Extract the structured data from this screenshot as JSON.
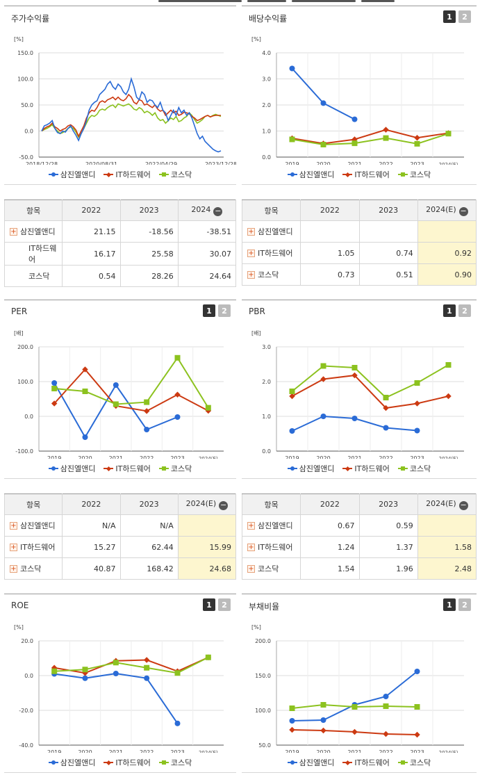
{
  "colors": {
    "s1": "#2a6bd6",
    "s2": "#cc3a12",
    "s3": "#8cc21f",
    "grid": "#dddddd",
    "axis": "#555555"
  },
  "legend": [
    "삼진엘앤디",
    "IT하드웨어",
    "코스닥"
  ],
  "tabs": [
    "1",
    "2"
  ],
  "chart_data": [
    {
      "id": "stock",
      "type": "line",
      "title": "주가수익률",
      "ylabel": "[%]",
      "ylim": [
        -50,
        150
      ],
      "yticks": [
        "150.0",
        "100.0",
        "50.0",
        "0.0",
        "-50.0"
      ],
      "x_labels": [
        "2018/12/28",
        "2020/08/31",
        "2022/04/29",
        "2023/12/28"
      ],
      "series": [
        {
          "name": "삼진엘앤디",
          "values": [
            0,
            10,
            12,
            15,
            20,
            5,
            -3,
            -5,
            0,
            -2,
            5,
            10,
            0,
            -8,
            -18,
            -5,
            5,
            20,
            40,
            50,
            55,
            58,
            70,
            75,
            80,
            90,
            95,
            85,
            80,
            90,
            85,
            75,
            70,
            80,
            100,
            85,
            65,
            60,
            75,
            70,
            55,
            60,
            58,
            50,
            45,
            55,
            40,
            35,
            20,
            30,
            40,
            30,
            45,
            35,
            40,
            30,
            35,
            25,
            10,
            -5,
            -15,
            -10,
            -20,
            -25,
            -30,
            -35,
            -38,
            -40,
            -38
          ]
        },
        {
          "name": "IT하드웨어",
          "values": [
            0,
            5,
            8,
            10,
            15,
            8,
            5,
            0,
            3,
            5,
            10,
            12,
            8,
            2,
            -10,
            0,
            10,
            25,
            35,
            40,
            38,
            45,
            55,
            58,
            55,
            60,
            62,
            65,
            60,
            65,
            60,
            58,
            62,
            70,
            65,
            55,
            52,
            60,
            58,
            50,
            52,
            48,
            45,
            50,
            42,
            38,
            40,
            30,
            35,
            40,
            35,
            38,
            30,
            32,
            36,
            35,
            33,
            28,
            25,
            20,
            22,
            25,
            28,
            30,
            27,
            29,
            30,
            30,
            30
          ]
        },
        {
          "name": "코스닥",
          "values": [
            0,
            3,
            5,
            8,
            12,
            5,
            0,
            -5,
            -3,
            0,
            5,
            8,
            5,
            -2,
            -12,
            -5,
            5,
            15,
            25,
            30,
            28,
            32,
            40,
            42,
            40,
            45,
            48,
            50,
            45,
            52,
            50,
            48,
            50,
            52,
            48,
            42,
            40,
            45,
            42,
            35,
            38,
            35,
            30,
            35,
            25,
            20,
            22,
            15,
            20,
            25,
            22,
            28,
            18,
            20,
            25,
            28,
            35,
            30,
            22,
            15,
            18,
            22,
            28,
            30,
            27,
            30,
            32,
            30,
            28
          ]
        }
      ]
    },
    {
      "id": "div",
      "type": "line",
      "title": "배당수익률",
      "ylabel": "[%]",
      "ylim": [
        0,
        4
      ],
      "yticks": [
        "4.0",
        "3.0",
        "2.0",
        "1.0",
        "0.0"
      ],
      "categories": [
        "2019",
        "2020",
        "2021",
        "2022",
        "2023",
        "2024(E)"
      ],
      "series": [
        {
          "name": "삼진엘앤디",
          "values": [
            3.4,
            2.07,
            1.45,
            null,
            null,
            null
          ]
        },
        {
          "name": "IT하드웨어",
          "values": [
            0.72,
            0.52,
            0.68,
            1.05,
            0.74,
            0.92
          ]
        },
        {
          "name": "코스닥",
          "values": [
            0.68,
            0.48,
            0.53,
            0.73,
            0.51,
            0.9
          ]
        }
      ]
    },
    {
      "id": "per",
      "type": "line",
      "title": "PER",
      "ylabel": "[배]",
      "ylim": [
        -100,
        200
      ],
      "yticks": [
        "200.0",
        "100.0",
        "0.0",
        "-100.0"
      ],
      "categories": [
        "2019",
        "2020",
        "2021",
        "2022",
        "2023",
        "2024(E)"
      ],
      "series": [
        {
          "name": "삼진엘앤디",
          "values": [
            96,
            -60,
            90,
            -38,
            -2,
            null
          ]
        },
        {
          "name": "IT하드웨어",
          "values": [
            37,
            135,
            30,
            15.27,
            62.44,
            15.99
          ]
        },
        {
          "name": "코스닥",
          "values": [
            80,
            72,
            35,
            40.87,
            168.42,
            24.68
          ]
        }
      ]
    },
    {
      "id": "pbr",
      "type": "line",
      "title": "PBR",
      "ylabel": "[배]",
      "ylim": [
        0,
        3
      ],
      "yticks": [
        "3.0",
        "2.0",
        "1.0",
        "0.0"
      ],
      "categories": [
        "2019",
        "2020",
        "2021",
        "2022",
        "2023",
        "2024(E)"
      ],
      "series": [
        {
          "name": "삼진엘앤디",
          "values": [
            0.58,
            1.0,
            0.94,
            0.67,
            0.59,
            null
          ]
        },
        {
          "name": "IT하드웨어",
          "values": [
            1.58,
            2.07,
            2.18,
            1.24,
            1.37,
            1.58
          ]
        },
        {
          "name": "코스닥",
          "values": [
            1.72,
            2.45,
            2.4,
            1.54,
            1.96,
            2.48
          ]
        }
      ]
    },
    {
      "id": "roe",
      "type": "line",
      "title": "ROE",
      "ylabel": "[%]",
      "ylim": [
        -40,
        20
      ],
      "yticks": [
        "20.0",
        "0.0",
        "-20.0",
        "-40.0"
      ],
      "categories": [
        "2019",
        "2020",
        "2021",
        "2022",
        "2023",
        "2024(E)"
      ],
      "series": [
        {
          "name": "삼진엘앤디",
          "values": [
            1,
            -1.5,
            1.2,
            -1.5,
            -27.5,
            null
          ]
        },
        {
          "name": "IT하드웨어",
          "values": [
            4.5,
            1.5,
            8.5,
            9,
            2.5,
            10.5
          ]
        },
        {
          "name": "코스닥",
          "values": [
            2.5,
            3.5,
            7.5,
            4.5,
            1.5,
            10.5
          ]
        }
      ]
    },
    {
      "id": "debt",
      "type": "line",
      "title": "부채비율",
      "ylabel": "[%]",
      "ylim": [
        50,
        200
      ],
      "yticks": [
        "200.0",
        "150.0",
        "100.0",
        "50.0"
      ],
      "categories": [
        "2019",
        "2020",
        "2021",
        "2022",
        "2023",
        "2024(E)"
      ],
      "series": [
        {
          "name": "삼진엘앤디",
          "values": [
            85,
            86,
            108,
            120,
            156,
            null
          ]
        },
        {
          "name": "IT하드웨어",
          "values": [
            72,
            71,
            69,
            66,
            65,
            null
          ]
        },
        {
          "name": "코스닥",
          "values": [
            103,
            108,
            105,
            106,
            105,
            null
          ]
        }
      ]
    }
  ],
  "tables": {
    "stock": {
      "headers": [
        "항목",
        "2022",
        "2023",
        "2024"
      ],
      "rows": [
        {
          "name": "삼진엘앤디",
          "plus": true,
          "cells": [
            "21.15",
            "-18.56",
            "-38.51"
          ]
        },
        {
          "name": "IT하드웨어",
          "plus": false,
          "cells": [
            "16.17",
            "25.58",
            "30.07"
          ]
        },
        {
          "name": "코스닥",
          "plus": false,
          "cells": [
            "0.54",
            "28.26",
            "24.64"
          ]
        }
      ]
    },
    "div": {
      "headers": [
        "항목",
        "2022",
        "2023",
        "2024(E)"
      ],
      "rows": [
        {
          "name": "삼진엘앤디",
          "plus": true,
          "cells": [
            "",
            "",
            ""
          ]
        },
        {
          "name": "IT하드웨어",
          "plus": true,
          "cells": [
            "1.05",
            "0.74",
            "0.92"
          ]
        },
        {
          "name": "코스닥",
          "plus": true,
          "cells": [
            "0.73",
            "0.51",
            "0.90"
          ]
        }
      ]
    },
    "per": {
      "headers": [
        "항목",
        "2022",
        "2023",
        "2024(E)"
      ],
      "rows": [
        {
          "name": "삼진엘앤디",
          "plus": true,
          "cells": [
            "N/A",
            "N/A",
            ""
          ]
        },
        {
          "name": "IT하드웨어",
          "plus": true,
          "cells": [
            "15.27",
            "62.44",
            "15.99"
          ]
        },
        {
          "name": "코스닥",
          "plus": true,
          "cells": [
            "40.87",
            "168.42",
            "24.68"
          ]
        }
      ]
    },
    "pbr": {
      "headers": [
        "항목",
        "2022",
        "2023",
        "2024(E)"
      ],
      "rows": [
        {
          "name": "삼진엘앤디",
          "plus": true,
          "cells": [
            "0.67",
            "0.59",
            ""
          ]
        },
        {
          "name": "IT하드웨어",
          "plus": true,
          "cells": [
            "1.24",
            "1.37",
            "1.58"
          ]
        },
        {
          "name": "코스닥",
          "plus": true,
          "cells": [
            "1.54",
            "1.96",
            "2.48"
          ]
        }
      ]
    }
  }
}
